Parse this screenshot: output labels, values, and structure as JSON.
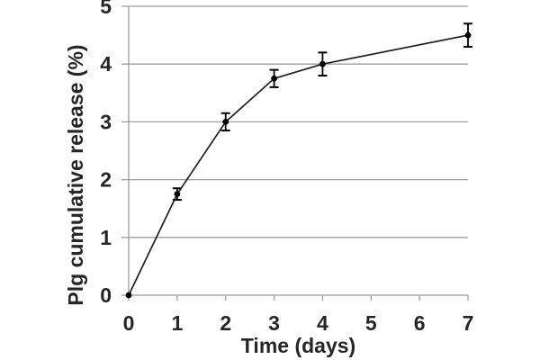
{
  "figure": {
    "background": "#ffffff"
  },
  "chart_data": {
    "type": "line",
    "title": "",
    "xlabel": "Time (days)",
    "ylabel": "Plg cumulative release (%)",
    "x": [
      0,
      1,
      2,
      3,
      4,
      7
    ],
    "y": [
      0,
      1.75,
      3.0,
      3.75,
      4.0,
      4.5
    ],
    "yerr": [
      0,
      0.1,
      0.15,
      0.15,
      0.2,
      0.2
    ],
    "xlim": [
      0,
      7
    ],
    "ylim": [
      0,
      5
    ],
    "x_ticks": [
      "0",
      "1",
      "2",
      "3",
      "4",
      "5",
      "6",
      "7"
    ],
    "y_ticks": [
      "0",
      "1",
      "2",
      "3",
      "4",
      "5"
    ],
    "grid": "horizontal",
    "legend": "none",
    "marker": "filled-circle",
    "colors": {
      "line": "#1f1f1f",
      "marker": "#000000",
      "error_bar": "#000000",
      "grid": "#9d9d9d",
      "axis": "#9d9d9d",
      "text": "#262626"
    }
  }
}
